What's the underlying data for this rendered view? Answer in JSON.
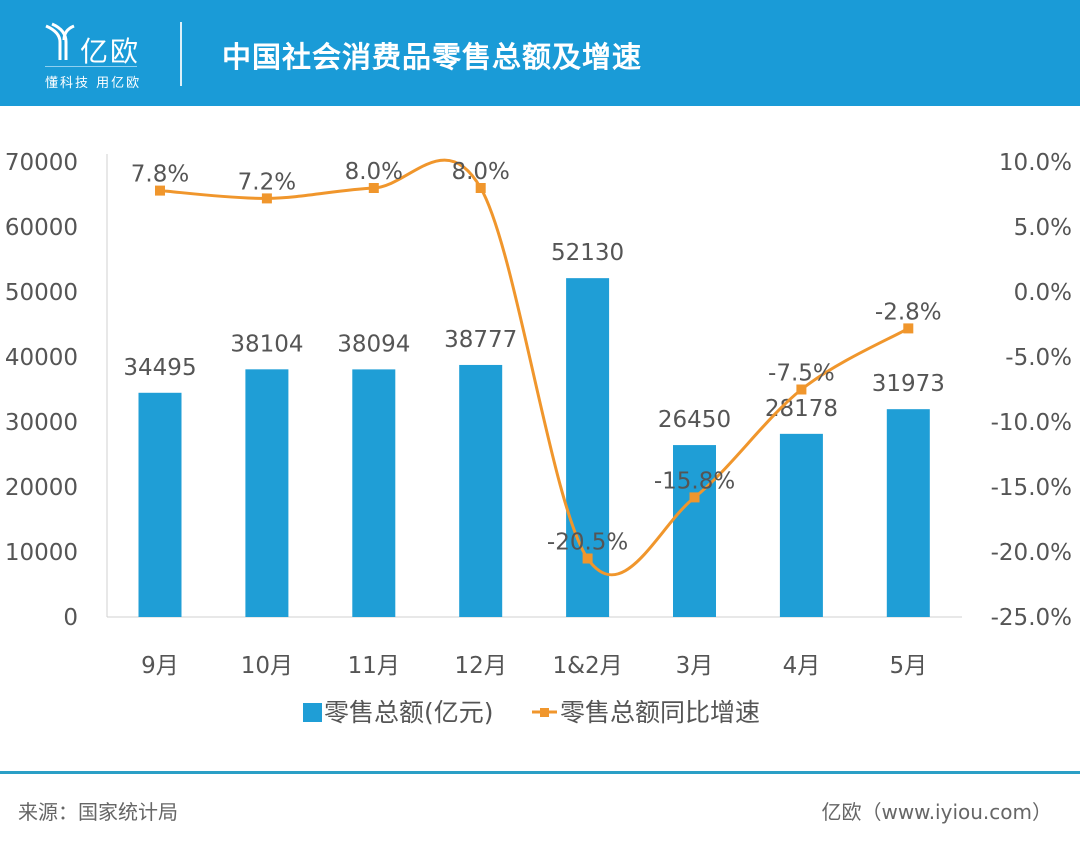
{
  "header": {
    "logo_text": "亿欧",
    "logo_slogan": "懂科技 用亿欧",
    "title": "中国社会消费品零售总额及增速"
  },
  "footer": {
    "source": "来源：国家统计局",
    "brand": "亿欧（www.iyiou.com）"
  },
  "colors": {
    "header": "#1a9bd7",
    "bar": "#1f9ed6",
    "line": "#f0962c"
  },
  "chart_data": {
    "type": "bar+line",
    "categories": [
      "9月",
      "10月",
      "11月",
      "12月",
      "1&2月",
      "3月",
      "4月",
      "5月"
    ],
    "series": [
      {
        "name": "零售总额(亿元)",
        "type": "bar",
        "axis": "left",
        "values": [
          34495,
          38104,
          38094,
          38777,
          52130,
          26450,
          28178,
          31973
        ],
        "labels": [
          "34495",
          "38104",
          "38094",
          "38777",
          "52130",
          "26450",
          "28178",
          "31973"
        ]
      },
      {
        "name": "零售总额同比增速",
        "type": "line",
        "axis": "right",
        "smooth": true,
        "values": [
          7.8,
          7.2,
          8.0,
          8.0,
          -20.5,
          -15.8,
          -7.5,
          -2.8
        ],
        "labels": [
          "7.8%",
          "7.2%",
          "8.0%",
          "8.0%",
          "-20.5%",
          "-15.8%",
          "-7.5%",
          "-2.8%"
        ]
      }
    ],
    "left_axis": {
      "ylim": [
        0,
        70000
      ],
      "ticks": [
        "0",
        "10000",
        "20000",
        "30000",
        "40000",
        "50000",
        "60000",
        "70000"
      ]
    },
    "right_axis": {
      "ylim": [
        -25,
        10
      ],
      "ticks": [
        "-25.0%",
        "-20.0%",
        "-15.0%",
        "-10.0%",
        "-5.0%",
        "0.0%",
        "5.0%",
        "10.0%"
      ]
    },
    "grid": false,
    "legend": "bottom"
  }
}
